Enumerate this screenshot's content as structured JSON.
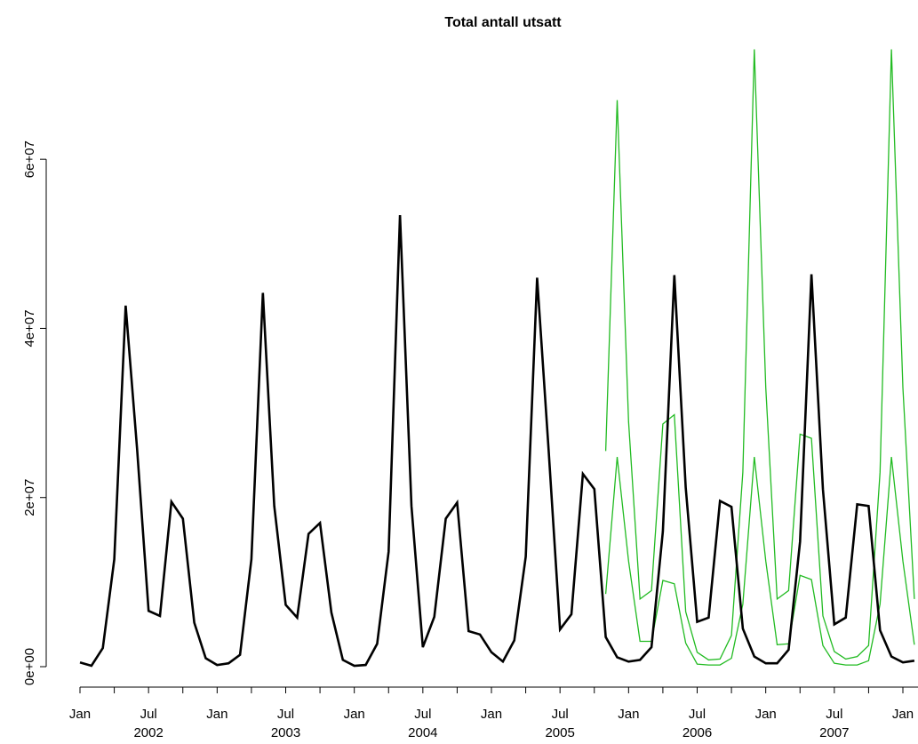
{
  "chart_data": {
    "type": "line",
    "title": "Total antall utsatt",
    "xlabel": "",
    "ylabel": "",
    "ylim": [
      0,
      72000000
    ],
    "yticks": [
      {
        "value": 0,
        "label": "0e+00"
      },
      {
        "value": 20000000,
        "label": "2e+07"
      },
      {
        "value": 40000000,
        "label": "4e+07"
      },
      {
        "value": 60000000,
        "label": "6e+07"
      }
    ],
    "xlim": [
      "2002-01",
      "2008-01"
    ],
    "xticks": [
      {
        "x": "2002-01",
        "label": "Jan",
        "year": ""
      },
      {
        "x": "2002-07",
        "label": "Jul",
        "year": "2002"
      },
      {
        "x": "2003-01",
        "label": "Jan",
        "year": ""
      },
      {
        "x": "2003-07",
        "label": "Jul",
        "year": "2003"
      },
      {
        "x": "2004-01",
        "label": "Jan",
        "year": ""
      },
      {
        "x": "2004-07",
        "label": "Jul",
        "year": "2004"
      },
      {
        "x": "2005-01",
        "label": "Jan",
        "year": ""
      },
      {
        "x": "2005-07",
        "label": "Jul",
        "year": "2005"
      },
      {
        "x": "2006-01",
        "label": "Jan",
        "year": ""
      },
      {
        "x": "2006-07",
        "label": "Jul",
        "year": "2006"
      },
      {
        "x": "2007-01",
        "label": "Jan",
        "year": ""
      },
      {
        "x": "2007-07",
        "label": "Jul",
        "year": "2007"
      },
      {
        "x": "2008-01",
        "label": "Jan",
        "year": ""
      }
    ],
    "minor_ticks": [
      "2002-04",
      "2002-10",
      "2003-04",
      "2003-10",
      "2004-04",
      "2004-10",
      "2005-04",
      "2005-10",
      "2006-04",
      "2006-10",
      "2007-04",
      "2007-10"
    ],
    "grid": false,
    "legend": "none",
    "colors": {
      "observed": "#000000",
      "bands": "#22bb22"
    },
    "series": [
      {
        "key": "observed",
        "x": [
          "2002-01",
          "2002-02",
          "2002-03",
          "2002-04",
          "2002-05",
          "2002-06",
          "2002-07",
          "2002-08",
          "2002-09",
          "2002-10",
          "2002-11",
          "2002-12",
          "2003-01",
          "2003-02",
          "2003-03",
          "2003-04",
          "2003-05",
          "2003-06",
          "2003-07",
          "2003-08",
          "2003-09",
          "2003-10",
          "2003-11",
          "2003-12",
          "2004-01",
          "2004-02",
          "2004-03",
          "2004-04",
          "2004-05",
          "2004-06",
          "2004-07",
          "2004-08",
          "2004-09",
          "2004-10",
          "2004-11",
          "2004-12",
          "2005-01",
          "2005-02",
          "2005-03",
          "2005-04",
          "2005-05",
          "2005-06",
          "2005-07",
          "2005-08",
          "2005-09",
          "2005-10",
          "2005-11",
          "2005-12",
          "2006-01",
          "2006-02",
          "2006-03",
          "2006-04",
          "2006-05",
          "2006-06",
          "2006-07",
          "2006-08",
          "2006-09",
          "2006-10",
          "2006-11",
          "2006-12",
          "2007-01",
          "2007-02",
          "2007-03",
          "2007-04",
          "2007-05",
          "2007-06",
          "2007-07",
          "2007-08",
          "2007-09",
          "2007-10",
          "2007-11",
          "2007-12",
          "2008-01",
          "2008-02"
        ],
        "values": [
          500000,
          100000,
          2200000,
          12700000,
          42700000,
          25700000,
          6600000,
          6000000,
          19500000,
          17500000,
          5200000,
          1000000,
          200000,
          400000,
          1400000,
          12700000,
          44200000,
          19000000,
          7300000,
          5800000,
          15700000,
          17000000,
          6400000,
          800000,
          100000,
          200000,
          2700000,
          13600000,
          53400000,
          19000000,
          2300000,
          5900000,
          17500000,
          19400000,
          4200000,
          3800000,
          1700000,
          600000,
          3100000,
          13000000,
          46000000,
          25700000,
          4400000,
          6200000,
          22800000,
          21000000,
          3500000,
          1100000,
          600000,
          800000,
          2300000,
          16000000,
          46300000,
          21200000,
          5300000,
          5800000,
          19600000,
          18900000,
          4500000,
          1200000,
          400000,
          400000,
          2000000,
          14800000,
          46400000,
          21000000,
          5000000,
          5800000,
          19200000,
          19000000,
          4300000,
          1200000,
          500000,
          700000
        ]
      },
      {
        "key": "upper",
        "x": [
          "2005-11",
          "2005-12",
          "2006-01",
          "2006-02",
          "2006-03",
          "2006-04",
          "2006-05",
          "2006-06",
          "2006-07",
          "2006-08",
          "2006-09",
          "2006-10",
          "2006-11",
          "2006-12",
          "2007-01",
          "2007-02",
          "2007-03",
          "2007-04",
          "2007-05",
          "2007-06",
          "2007-07",
          "2007-08",
          "2007-09",
          "2007-10",
          "2007-11",
          "2007-12",
          "2008-01",
          "2008-02"
        ],
        "values": [
          25500000,
          67000000,
          29000000,
          8000000,
          9000000,
          28700000,
          29800000,
          6500000,
          1700000,
          800000,
          900000,
          3700000,
          23000000,
          73000000,
          33000000,
          8000000,
          9000000,
          27500000,
          27000000,
          6000000,
          1800000,
          900000,
          1200000,
          2500000,
          23000000,
          73000000,
          33000000,
          8000000
        ]
      },
      {
        "key": "lower",
        "x": [
          "2005-11",
          "2005-12",
          "2006-01",
          "2006-02",
          "2006-03",
          "2006-04",
          "2006-05",
          "2006-06",
          "2006-07",
          "2006-08",
          "2006-09",
          "2006-10",
          "2006-11",
          "2006-12",
          "2007-01",
          "2007-02",
          "2007-03",
          "2007-04",
          "2007-05",
          "2007-06",
          "2007-07",
          "2007-08",
          "2007-09",
          "2007-10",
          "2007-11",
          "2007-12",
          "2008-01",
          "2008-02"
        ],
        "values": [
          8600000,
          24800000,
          12500000,
          3000000,
          3000000,
          10200000,
          9800000,
          2800000,
          300000,
          200000,
          200000,
          1000000,
          7400000,
          24800000,
          12500000,
          2600000,
          2700000,
          10800000,
          10300000,
          2500000,
          400000,
          200000,
          200000,
          700000,
          7400000,
          24800000,
          12500000,
          2600000
        ]
      }
    ]
  }
}
